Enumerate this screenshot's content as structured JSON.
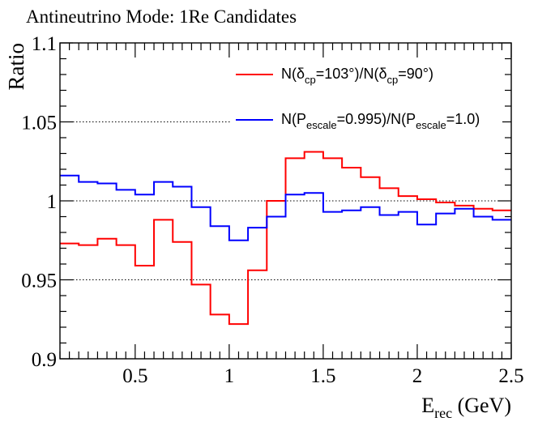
{
  "chart_data": {
    "type": "line",
    "title": "Antineutrino Mode: 1Re Candidates",
    "xlabel_main": "E",
    "xlabel_sub": "rec",
    "xlabel_unit": " (GeV)",
    "ylabel": "Ratio",
    "xlim": [
      0.1,
      2.5
    ],
    "ylim": [
      0.9,
      1.1
    ],
    "grid": "horizontal dotted at 0.95, 1.0, 1.05",
    "legend_position": "top-right",
    "x_ticks": [
      0.5,
      1.0,
      1.5,
      2.0,
      2.5
    ],
    "x_tick_labels": [
      "0.5",
      "1",
      "1.5",
      "2",
      "2.5"
    ],
    "y_ticks": [
      0.9,
      0.95,
      1.0,
      1.05,
      1.1
    ],
    "y_tick_labels": [
      "0.9",
      "0.95",
      "1",
      "1.05",
      "1.1"
    ],
    "bin_edges": [
      0.1,
      0.2,
      0.3,
      0.4,
      0.5,
      0.6,
      0.7,
      0.8,
      0.9,
      1.0,
      1.1,
      1.2,
      1.3,
      1.4,
      1.5,
      1.6,
      1.7,
      1.8,
      1.9,
      2.0,
      2.1,
      2.2,
      2.3,
      2.4,
      2.5
    ],
    "series": [
      {
        "name": "delta_cp",
        "color": "#ff0000",
        "legend_parts": [
          "N(δ",
          "cp",
          "=103°)/N(δ",
          "cp",
          "=90°)"
        ],
        "values": [
          0.973,
          0.972,
          0.976,
          0.972,
          0.959,
          0.988,
          0.974,
          0.947,
          0.928,
          0.922,
          0.956,
          1.0,
          1.027,
          1.031,
          1.027,
          1.021,
          1.015,
          1.008,
          1.003,
          1.001,
          0.999,
          0.997,
          0.995,
          0.994
        ]
      },
      {
        "name": "p_escale",
        "color": "#0000ff",
        "legend_parts": [
          "N(P",
          "escale",
          "=0.995)/N(P",
          "escale",
          "=1.0)"
        ],
        "values": [
          1.016,
          1.012,
          1.011,
          1.007,
          1.004,
          1.012,
          1.009,
          0.996,
          0.984,
          0.975,
          0.983,
          0.99,
          1.004,
          1.005,
          0.993,
          0.994,
          0.996,
          0.991,
          0.993,
          0.985,
          0.992,
          0.995,
          0.99,
          0.988
        ]
      }
    ]
  }
}
